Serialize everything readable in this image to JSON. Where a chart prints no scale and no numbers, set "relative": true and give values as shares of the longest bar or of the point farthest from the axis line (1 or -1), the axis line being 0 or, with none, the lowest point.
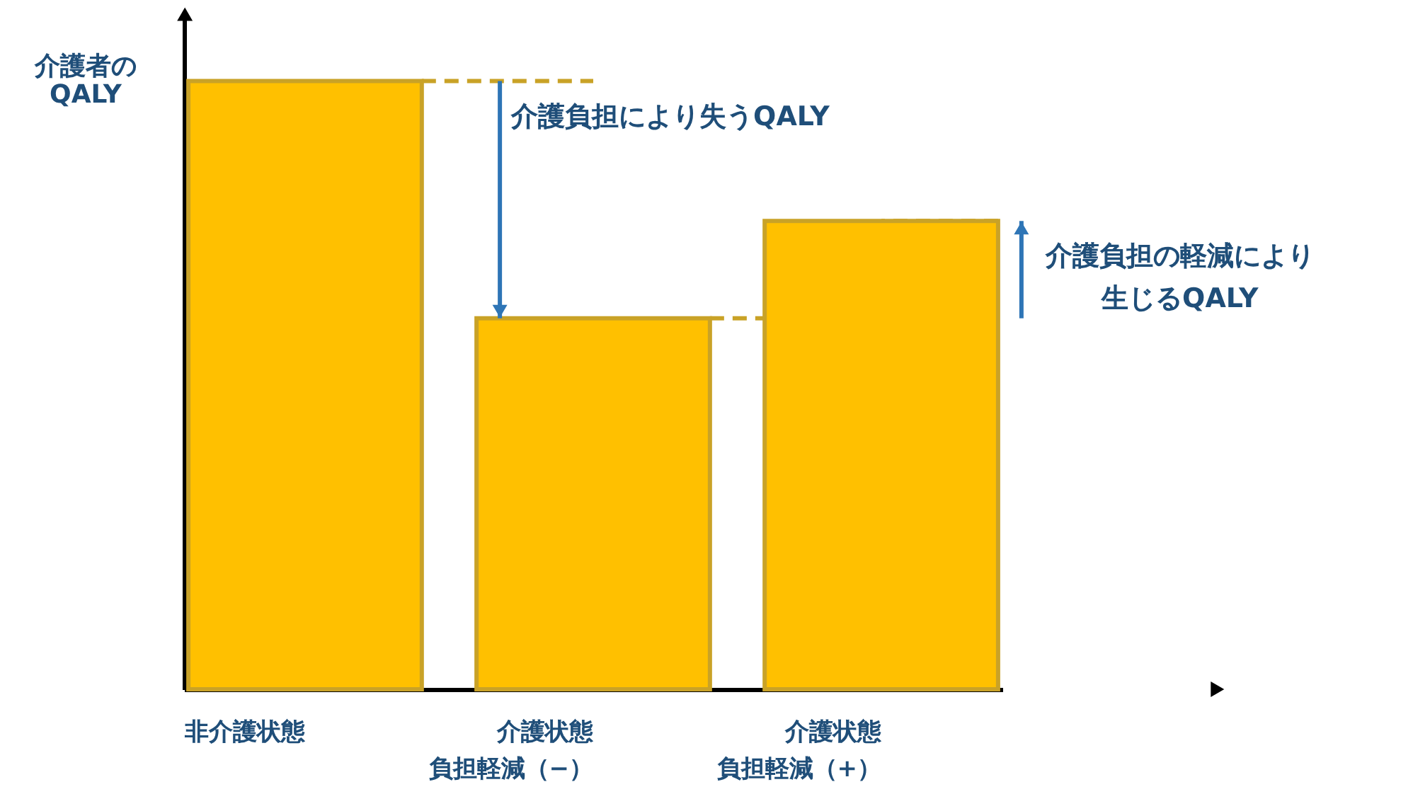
{
  "chart_data": {
    "type": "bar",
    "relative": true,
    "tick_labels": "x",
    "ylabel": "介護者の\nQALY",
    "categories": [
      "非介護状態",
      "介護状態負担軽減（−）",
      "介護状態負担軽減（+）"
    ],
    "values": [
      1,
      0.61,
      0.77
    ],
    "color": "#ffc000",
    "annotations": [
      "介護負担により失うQALY",
      "介護負担の軽減により生じるQALY"
    ]
  }
}
